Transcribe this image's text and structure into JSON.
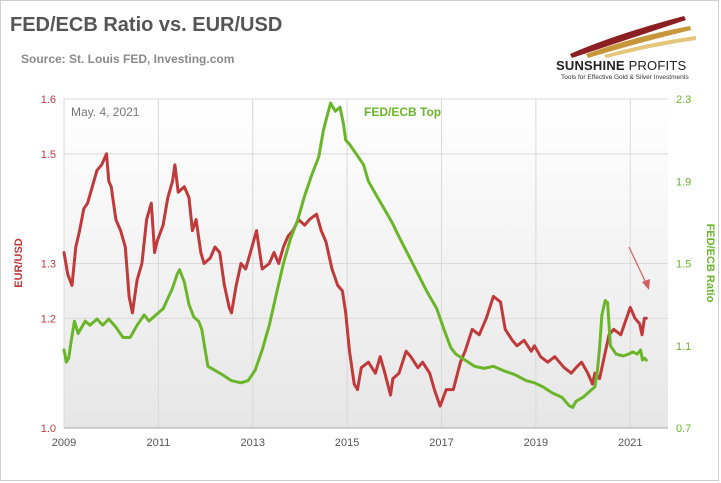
{
  "header": {
    "title": "FED/ECB Ratio vs. EUR/USD",
    "subtitle": "Source: St. Louis FED, Investing.com"
  },
  "brand": {
    "name_bold": "SUNSHINE",
    "name_light": "PROFITS",
    "tagline": "Tools for Effective Gold & Silver Investments"
  },
  "chart_data": {
    "type": "line",
    "date_label": "May. 4, 2021",
    "annotation": "FED/ECB Top",
    "x_ticks": [
      "2009",
      "2011",
      "2013",
      "2015",
      "2017",
      "2019",
      "2021"
    ],
    "xlim": [
      2009.0,
      2021.8
    ],
    "grid": true,
    "colors": {
      "eurusd": "#c0393b",
      "fedecb": "#6bb52b"
    },
    "left_axis": {
      "label": "EUR/USD",
      "ylim": [
        1.0,
        1.6
      ],
      "ticks": [
        "1.6",
        "1.5",
        "1.3",
        "1.2",
        "1.0"
      ],
      "tick_values": [
        1.6,
        1.5,
        1.3,
        1.2,
        1.0
      ]
    },
    "right_axis": {
      "label": "FED/ECB Ratio",
      "ylim": [
        0.7,
        2.3
      ],
      "ticks": [
        "2.3",
        "1.9",
        "1.5",
        "1.1",
        "0.7"
      ],
      "tick_values": [
        2.3,
        1.9,
        1.5,
        1.1,
        0.7
      ]
    },
    "series": [
      {
        "key": "eurusd",
        "axis": "left",
        "points": [
          [
            2009.0,
            1.32
          ],
          [
            2009.08,
            1.28
          ],
          [
            2009.17,
            1.26
          ],
          [
            2009.25,
            1.33
          ],
          [
            2009.33,
            1.36
          ],
          [
            2009.42,
            1.4
          ],
          [
            2009.5,
            1.41
          ],
          [
            2009.6,
            1.44
          ],
          [
            2009.7,
            1.47
          ],
          [
            2009.8,
            1.48
          ],
          [
            2009.9,
            1.5
          ],
          [
            2009.95,
            1.45
          ],
          [
            2010.0,
            1.44
          ],
          [
            2010.1,
            1.38
          ],
          [
            2010.2,
            1.36
          ],
          [
            2010.3,
            1.33
          ],
          [
            2010.38,
            1.24
          ],
          [
            2010.45,
            1.21
          ],
          [
            2010.55,
            1.27
          ],
          [
            2010.65,
            1.3
          ],
          [
            2010.75,
            1.38
          ],
          [
            2010.85,
            1.41
          ],
          [
            2010.92,
            1.32
          ],
          [
            2010.97,
            1.34
          ],
          [
            2011.1,
            1.37
          ],
          [
            2011.2,
            1.42
          ],
          [
            2011.3,
            1.45
          ],
          [
            2011.35,
            1.48
          ],
          [
            2011.42,
            1.43
          ],
          [
            2011.55,
            1.44
          ],
          [
            2011.65,
            1.42
          ],
          [
            2011.72,
            1.36
          ],
          [
            2011.8,
            1.38
          ],
          [
            2011.9,
            1.32
          ],
          [
            2011.97,
            1.3
          ],
          [
            2012.1,
            1.31
          ],
          [
            2012.2,
            1.33
          ],
          [
            2012.3,
            1.32
          ],
          [
            2012.4,
            1.26
          ],
          [
            2012.5,
            1.22
          ],
          [
            2012.55,
            1.21
          ],
          [
            2012.65,
            1.26
          ],
          [
            2012.75,
            1.3
          ],
          [
            2012.85,
            1.29
          ],
          [
            2012.95,
            1.32
          ],
          [
            2013.08,
            1.36
          ],
          [
            2013.2,
            1.29
          ],
          [
            2013.35,
            1.3
          ],
          [
            2013.45,
            1.32
          ],
          [
            2013.55,
            1.3
          ],
          [
            2013.65,
            1.33
          ],
          [
            2013.75,
            1.35
          ],
          [
            2013.85,
            1.36
          ],
          [
            2013.97,
            1.38
          ],
          [
            2014.1,
            1.37
          ],
          [
            2014.2,
            1.38
          ],
          [
            2014.35,
            1.39
          ],
          [
            2014.45,
            1.36
          ],
          [
            2014.55,
            1.34
          ],
          [
            2014.68,
            1.29
          ],
          [
            2014.8,
            1.26
          ],
          [
            2014.9,
            1.25
          ],
          [
            2014.97,
            1.21
          ],
          [
            2015.05,
            1.14
          ],
          [
            2015.15,
            1.08
          ],
          [
            2015.22,
            1.07
          ],
          [
            2015.3,
            1.11
          ],
          [
            2015.45,
            1.12
          ],
          [
            2015.6,
            1.1
          ],
          [
            2015.7,
            1.13
          ],
          [
            2015.8,
            1.1
          ],
          [
            2015.92,
            1.06
          ],
          [
            2015.97,
            1.09
          ],
          [
            2016.1,
            1.1
          ],
          [
            2016.25,
            1.14
          ],
          [
            2016.35,
            1.13
          ],
          [
            2016.5,
            1.11
          ],
          [
            2016.6,
            1.12
          ],
          [
            2016.75,
            1.1
          ],
          [
            2016.85,
            1.07
          ],
          [
            2016.97,
            1.04
          ],
          [
            2017.1,
            1.07
          ],
          [
            2017.25,
            1.07
          ],
          [
            2017.4,
            1.12
          ],
          [
            2017.5,
            1.14
          ],
          [
            2017.65,
            1.18
          ],
          [
            2017.8,
            1.17
          ],
          [
            2017.95,
            1.2
          ],
          [
            2018.1,
            1.24
          ],
          [
            2018.25,
            1.23
          ],
          [
            2018.35,
            1.18
          ],
          [
            2018.5,
            1.16
          ],
          [
            2018.6,
            1.15
          ],
          [
            2018.75,
            1.16
          ],
          [
            2018.9,
            1.14
          ],
          [
            2018.97,
            1.15
          ],
          [
            2019.1,
            1.13
          ],
          [
            2019.25,
            1.12
          ],
          [
            2019.4,
            1.13
          ],
          [
            2019.6,
            1.11
          ],
          [
            2019.75,
            1.1
          ],
          [
            2019.85,
            1.11
          ],
          [
            2019.97,
            1.12
          ],
          [
            2020.1,
            1.1
          ],
          [
            2020.2,
            1.08
          ],
          [
            2020.25,
            1.1
          ],
          [
            2020.35,
            1.09
          ],
          [
            2020.45,
            1.13
          ],
          [
            2020.55,
            1.17
          ],
          [
            2020.65,
            1.18
          ],
          [
            2020.8,
            1.17
          ],
          [
            2020.92,
            1.2
          ],
          [
            2021.0,
            1.22
          ],
          [
            2021.1,
            1.2
          ],
          [
            2021.2,
            1.19
          ],
          [
            2021.25,
            1.17
          ],
          [
            2021.3,
            1.2
          ],
          [
            2021.34,
            1.2
          ]
        ]
      },
      {
        "key": "fedecb",
        "axis": "right",
        "points": [
          [
            2009.0,
            1.08
          ],
          [
            2009.05,
            1.02
          ],
          [
            2009.1,
            1.04
          ],
          [
            2009.15,
            1.12
          ],
          [
            2009.22,
            1.22
          ],
          [
            2009.3,
            1.16
          ],
          [
            2009.45,
            1.22
          ],
          [
            2009.55,
            1.2
          ],
          [
            2009.7,
            1.23
          ],
          [
            2009.82,
            1.2
          ],
          [
            2009.95,
            1.23
          ],
          [
            2010.1,
            1.19
          ],
          [
            2010.25,
            1.14
          ],
          [
            2010.4,
            1.14
          ],
          [
            2010.55,
            1.2
          ],
          [
            2010.7,
            1.25
          ],
          [
            2010.8,
            1.22
          ],
          [
            2010.95,
            1.25
          ],
          [
            2011.1,
            1.28
          ],
          [
            2011.2,
            1.33
          ],
          [
            2011.3,
            1.38
          ],
          [
            2011.4,
            1.45
          ],
          [
            2011.45,
            1.47
          ],
          [
            2011.55,
            1.41
          ],
          [
            2011.65,
            1.3
          ],
          [
            2011.75,
            1.24
          ],
          [
            2011.85,
            1.22
          ],
          [
            2011.92,
            1.18
          ],
          [
            2011.97,
            1.11
          ],
          [
            2012.05,
            1.0
          ],
          [
            2012.2,
            0.98
          ],
          [
            2012.35,
            0.96
          ],
          [
            2012.55,
            0.93
          ],
          [
            2012.75,
            0.92
          ],
          [
            2012.9,
            0.93
          ],
          [
            2013.05,
            0.98
          ],
          [
            2013.2,
            1.08
          ],
          [
            2013.35,
            1.2
          ],
          [
            2013.5,
            1.35
          ],
          [
            2013.65,
            1.5
          ],
          [
            2013.8,
            1.62
          ],
          [
            2013.95,
            1.71
          ],
          [
            2014.1,
            1.83
          ],
          [
            2014.25,
            1.93
          ],
          [
            2014.4,
            2.02
          ],
          [
            2014.5,
            2.15
          ],
          [
            2014.58,
            2.22
          ],
          [
            2014.65,
            2.28
          ],
          [
            2014.75,
            2.24
          ],
          [
            2014.85,
            2.26
          ],
          [
            2014.92,
            2.18
          ],
          [
            2014.97,
            2.1
          ],
          [
            2015.05,
            2.08
          ],
          [
            2015.2,
            2.03
          ],
          [
            2015.35,
            1.98
          ],
          [
            2015.45,
            1.9
          ],
          [
            2015.6,
            1.84
          ],
          [
            2015.75,
            1.78
          ],
          [
            2015.95,
            1.7
          ],
          [
            2016.1,
            1.63
          ],
          [
            2016.3,
            1.54
          ],
          [
            2016.5,
            1.45
          ],
          [
            2016.7,
            1.36
          ],
          [
            2016.9,
            1.28
          ],
          [
            2017.05,
            1.18
          ],
          [
            2017.2,
            1.09
          ],
          [
            2017.3,
            1.06
          ],
          [
            2017.5,
            1.03
          ],
          [
            2017.7,
            1.0
          ],
          [
            2017.9,
            0.99
          ],
          [
            2018.1,
            1.0
          ],
          [
            2018.3,
            0.98
          ],
          [
            2018.55,
            0.96
          ],
          [
            2018.8,
            0.93
          ],
          [
            2018.97,
            0.92
          ],
          [
            2019.15,
            0.9
          ],
          [
            2019.35,
            0.87
          ],
          [
            2019.55,
            0.85
          ],
          [
            2019.7,
            0.81
          ],
          [
            2019.78,
            0.8
          ],
          [
            2019.85,
            0.83
          ],
          [
            2020.0,
            0.85
          ],
          [
            2020.15,
            0.88
          ],
          [
            2020.25,
            0.9
          ],
          [
            2020.3,
            0.97
          ],
          [
            2020.35,
            1.09
          ],
          [
            2020.4,
            1.25
          ],
          [
            2020.47,
            1.32
          ],
          [
            2020.52,
            1.31
          ],
          [
            2020.58,
            1.1
          ],
          [
            2020.7,
            1.06
          ],
          [
            2020.85,
            1.05
          ],
          [
            2020.97,
            1.06
          ],
          [
            2021.05,
            1.07
          ],
          [
            2021.15,
            1.06
          ],
          [
            2021.22,
            1.08
          ],
          [
            2021.26,
            1.03
          ],
          [
            2021.3,
            1.04
          ],
          [
            2021.34,
            1.03
          ]
        ]
      }
    ]
  }
}
